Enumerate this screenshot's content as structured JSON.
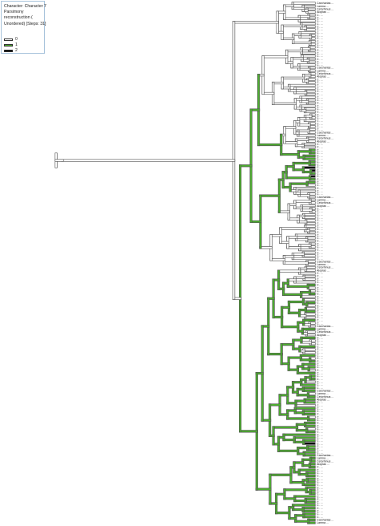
{
  "legend": {
    "lines": [
      "Character: Character 7",
      "Parsimony",
      "reconstruction (",
      "Unordered) [Steps: 31]"
    ],
    "states": [
      {
        "label": "0",
        "color": "#ffffff"
      },
      {
        "label": "1",
        "color": "#4caf2e"
      },
      {
        "label": "2",
        "color": "#000000"
      }
    ]
  },
  "colors": {
    "state0": "#ffffff",
    "state1": "#4caf2e",
    "state2": "#000000",
    "outline": "#555555"
  },
  "taxa": [
    "Carcharias ...",
    "Lamna ...",
    "Cetorhinus ...",
    "Alopias ...",
    "C. ...",
    "C. ...",
    "C. ...",
    "C. ...",
    "C. ...",
    "C. ...",
    "C. ...",
    "C. ...",
    "C. ...",
    "C. ...",
    "C. ...",
    "C. ...",
    "C. ...",
    "C. ...",
    "C. ...",
    "C. ...",
    "C. ...",
    "C. ..."
  ]
}
